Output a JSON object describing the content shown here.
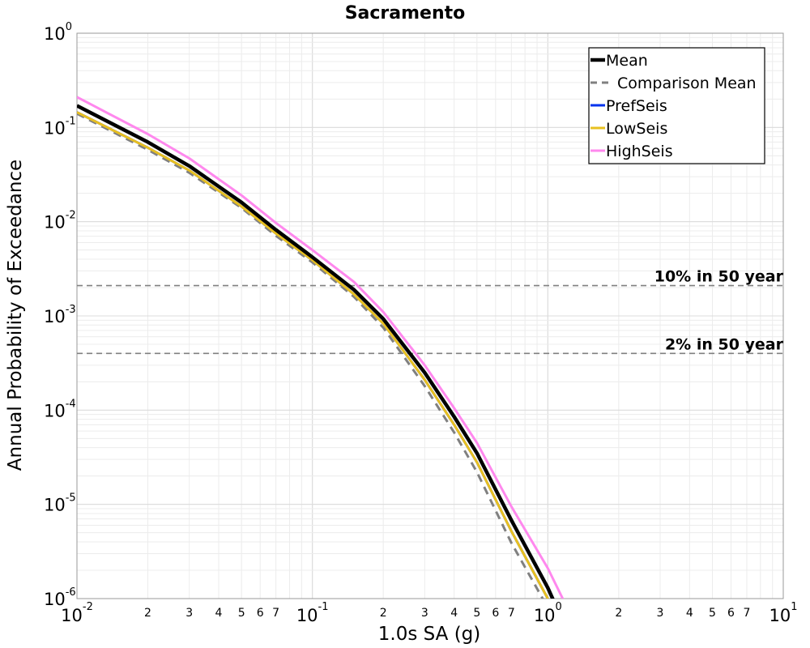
{
  "chart_data": {
    "type": "line",
    "title": "Sacramento",
    "xlabel": "1.0s SA (g)",
    "ylabel": "Annual Probability of Exceedance",
    "xscale": "log",
    "yscale": "log",
    "xlim": [
      0.01,
      10
    ],
    "ylim": [
      1e-06,
      1
    ],
    "grid": true,
    "legend_position": "top-right",
    "x_major_ticks": [
      {
        "value": 0.01,
        "base": "10",
        "exp": "-2"
      },
      {
        "value": 0.1,
        "base": "10",
        "exp": "-1"
      },
      {
        "value": 1,
        "base": "10",
        "exp": "0"
      },
      {
        "value": 10,
        "base": "10",
        "exp": "1"
      }
    ],
    "x_minor_tick_labels": [
      "2",
      "3",
      "4",
      "5",
      "6",
      "7"
    ],
    "y_major_ticks": [
      {
        "value": 1,
        "base": "10",
        "exp": "0"
      },
      {
        "value": 0.1,
        "base": "10",
        "exp": "-1"
      },
      {
        "value": 0.01,
        "base": "10",
        "exp": "-2"
      },
      {
        "value": 0.001,
        "base": "10",
        "exp": "-3"
      },
      {
        "value": 0.0001,
        "base": "10",
        "exp": "-4"
      },
      {
        "value": 1e-05,
        "base": "10",
        "exp": "-5"
      },
      {
        "value": 1e-06,
        "base": "10",
        "exp": "-6"
      }
    ],
    "reference_lines": [
      {
        "label": "10% in 50 year",
        "y": 0.0021,
        "color": "#808080",
        "dash": "dashed"
      },
      {
        "label": "2% in 50 year",
        "y": 0.0004,
        "color": "#808080",
        "dash": "dashed"
      }
    ],
    "series": [
      {
        "name": "Mean",
        "color": "#000000",
        "style": "solid",
        "width": "thick",
        "x": [
          0.01,
          0.02,
          0.03,
          0.05,
          0.07,
          0.1,
          0.15,
          0.2,
          0.3,
          0.4,
          0.5,
          0.7,
          1.0,
          1.2
        ],
        "y": [
          0.17,
          0.07,
          0.039,
          0.016,
          0.0082,
          0.0042,
          0.0019,
          0.00093,
          0.00025,
          8.5e-05,
          3.5e-05,
          6.8e-06,
          1.3e-06,
          4.7e-07
        ]
      },
      {
        "name": "Comparison Mean",
        "color": "#808080",
        "style": "dashed",
        "width": "medium",
        "x": [
          0.01,
          0.02,
          0.03,
          0.05,
          0.07,
          0.1,
          0.15,
          0.2,
          0.3,
          0.4,
          0.5,
          0.7,
          1.0,
          1.1
        ],
        "y": [
          0.14,
          0.058,
          0.033,
          0.014,
          0.0071,
          0.0037,
          0.0016,
          0.00075,
          0.00018,
          5.8e-05,
          2.2e-05,
          3.9e-06,
          8e-07,
          5e-07
        ]
      },
      {
        "name": "PrefSeis",
        "color": "#0033ee",
        "style": "solid",
        "width": "medium",
        "x": [
          0.01,
          0.02,
          0.03,
          0.05,
          0.07,
          0.1,
          0.15,
          0.2,
          0.3,
          0.4,
          0.5,
          0.7,
          1.0,
          1.15
        ],
        "y": [
          0.145,
          0.061,
          0.035,
          0.0145,
          0.0075,
          0.0039,
          0.0017,
          0.00083,
          0.00021,
          7e-05,
          2.8e-05,
          5.2e-06,
          1e-06,
          4.8e-07
        ]
      },
      {
        "name": "LowSeis",
        "color": "#e8c020",
        "style": "solid",
        "width": "medium",
        "x": [
          0.01,
          0.02,
          0.03,
          0.05,
          0.07,
          0.1,
          0.15,
          0.2,
          0.3,
          0.4,
          0.5,
          0.7,
          1.0,
          1.15
        ],
        "y": [
          0.145,
          0.061,
          0.035,
          0.0145,
          0.0075,
          0.0039,
          0.0017,
          0.00083,
          0.00021,
          7e-05,
          2.8e-05,
          5.2e-06,
          1e-06,
          4.8e-07
        ]
      },
      {
        "name": "HighSeis",
        "color": "#ff88ee",
        "style": "solid",
        "width": "medium",
        "x": [
          0.01,
          0.02,
          0.03,
          0.05,
          0.07,
          0.1,
          0.15,
          0.2,
          0.3,
          0.4,
          0.5,
          0.7,
          1.0,
          1.3
        ],
        "y": [
          0.21,
          0.085,
          0.047,
          0.019,
          0.0097,
          0.005,
          0.0023,
          0.0011,
          0.0003,
          0.000105,
          4.5e-05,
          9.5e-06,
          2.1e-06,
          5.5e-07
        ]
      }
    ]
  }
}
